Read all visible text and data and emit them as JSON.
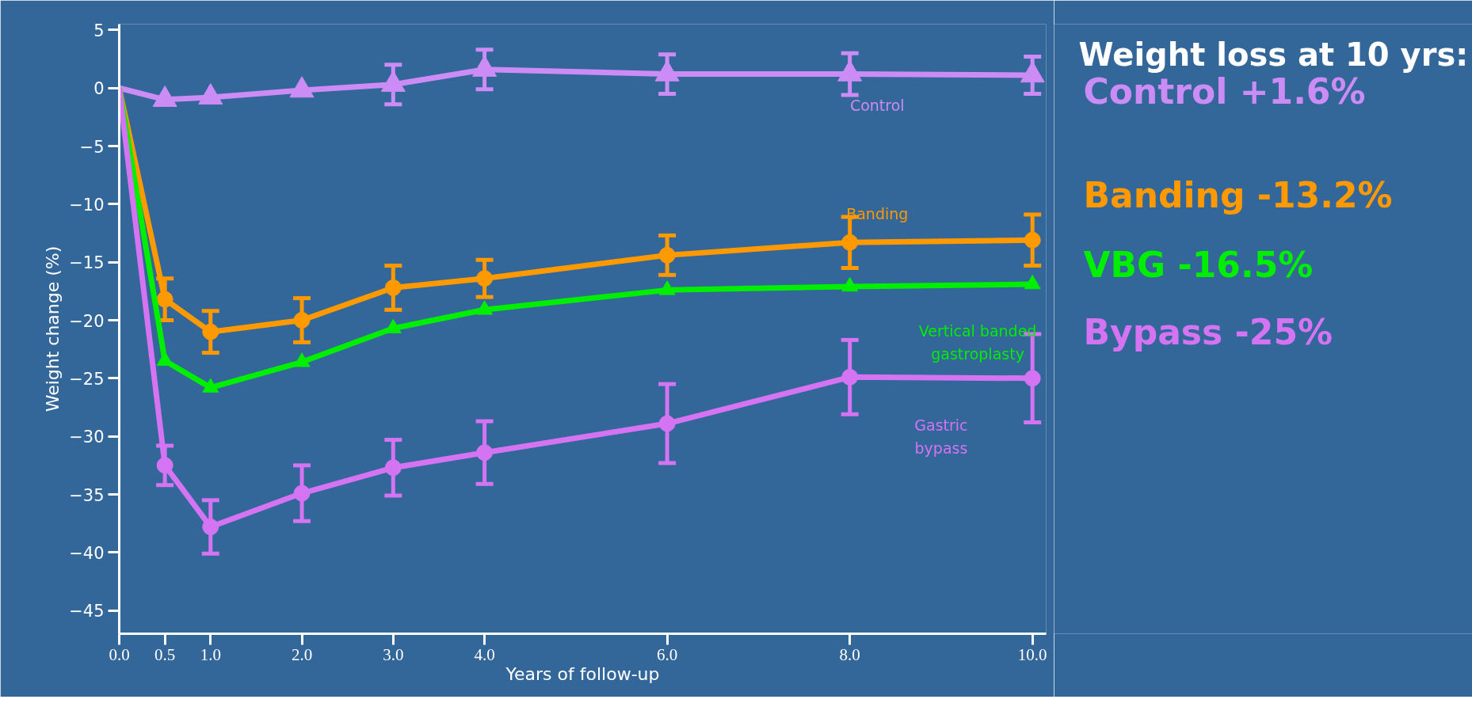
{
  "chart_data": {
    "type": "line",
    "xlabel": "Years of follow-up",
    "ylabel": "Weight change (%)",
    "x": [
      0,
      0.5,
      1,
      2,
      3,
      4,
      6,
      8,
      10
    ],
    "xlim": [
      0,
      10.15
    ],
    "ylim": [
      -47,
      5.5
    ],
    "xticks": [
      {
        "value": 0,
        "label": "0.0"
      },
      {
        "value": 0.5,
        "label": "0.5"
      },
      {
        "value": 1,
        "label": "1.0"
      },
      {
        "value": 2,
        "label": "2.0"
      },
      {
        "value": 3,
        "label": "3.0"
      },
      {
        "value": 4,
        "label": "4.0"
      },
      {
        "value": 6,
        "label": "6.0"
      },
      {
        "value": 8,
        "label": "8.0"
      },
      {
        "value": 10,
        "label": "10.0"
      }
    ],
    "yticks": [
      5,
      0,
      -5,
      -10,
      -15,
      -20,
      -25,
      -30,
      -35,
      -40,
      -45
    ],
    "grid": false,
    "series": [
      {
        "name": "Control",
        "color": "#cc8cf5",
        "marker": "triangle",
        "values": [
          0,
          -1.0,
          -0.8,
          -0.2,
          0.3,
          1.6,
          1.2,
          1.2,
          1.1
        ],
        "errors": [
          null,
          null,
          null,
          null,
          1.7,
          1.7,
          1.7,
          1.8,
          1.6
        ]
      },
      {
        "name": "Banding",
        "color": "#ff9900",
        "marker": "circle",
        "values": [
          0,
          -18.2,
          -21.0,
          -20.0,
          -17.2,
          -16.4,
          -14.4,
          -13.3,
          -13.1
        ],
        "errors": [
          null,
          1.8,
          1.8,
          1.9,
          1.9,
          1.6,
          1.7,
          2.2,
          2.2
        ]
      },
      {
        "name": "Vertical banded gastroplasty",
        "color": "#00ee00",
        "marker": "triangle",
        "values": [
          0,
          -23.5,
          -25.8,
          -23.6,
          -20.7,
          -19.1,
          -17.4,
          -17.1,
          -16.9
        ]
      },
      {
        "name": "Gastric bypass",
        "color": "#d474f2",
        "marker": "circle",
        "values": [
          0,
          -32.5,
          -37.8,
          -34.9,
          -32.7,
          -31.4,
          -28.9,
          -24.9,
          -25.0
        ],
        "errors": [
          null,
          1.7,
          2.3,
          2.4,
          2.4,
          2.7,
          3.4,
          3.2,
          3.8
        ]
      }
    ],
    "annotations": [
      "Weight loss at 10 yrs:",
      "Control  +1.6%",
      "Banding -13.2%",
      "VBG -16.5%",
      "Bypass -25%"
    ]
  }
}
